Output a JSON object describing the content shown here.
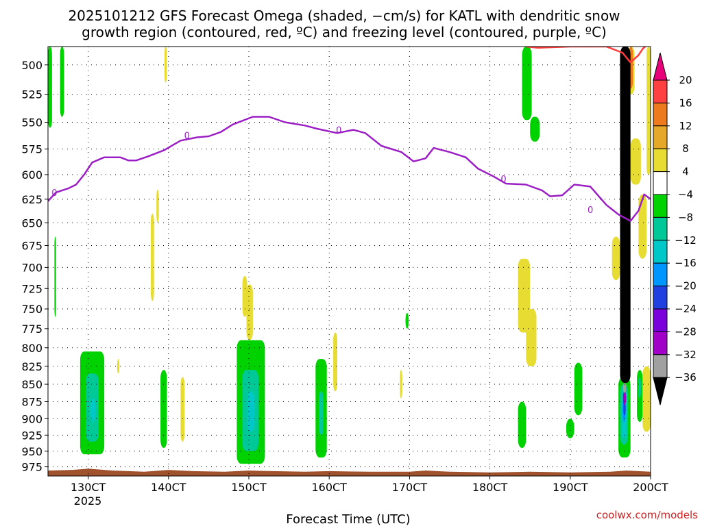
{
  "chart_data": {
    "type": "heatmap",
    "title_lines": [
      "2025101212 GFS Forecast Omega (shaded, −cm/s) for KATL with dendritic snow",
      "growth region (contoured, red, ºC) and freezing level (contoured, purple, ºC)"
    ],
    "xlabel": "Forecast Time (UTC)",
    "xlabel_year": "2025",
    "credit": "coolwx.com/models",
    "x_ticks": [
      {
        "day": 13,
        "label": "130CT"
      },
      {
        "day": 14,
        "label": "140CT"
      },
      {
        "day": 15,
        "label": "150CT"
      },
      {
        "day": 16,
        "label": "160CT"
      },
      {
        "day": 17,
        "label": "170CT"
      },
      {
        "day": 18,
        "label": "180CT"
      },
      {
        "day": 19,
        "label": "190CT"
      },
      {
        "day": 20,
        "label": "200CT"
      }
    ],
    "xlim_days": [
      12.5,
      20.0
    ],
    "y_ticks": [
      500,
      525,
      550,
      575,
      600,
      625,
      650,
      675,
      700,
      725,
      750,
      775,
      800,
      825,
      850,
      875,
      900,
      925,
      950,
      975
    ],
    "y_scale": "log pressure (hPa), inverted",
    "ylim_hpa": [
      485,
      990
    ],
    "grid": true,
    "colorbar": {
      "labels": [
        "20",
        "16",
        "12",
        "8",
        "4",
        "−4",
        "−8",
        "−12",
        "−16",
        "−20",
        "−24",
        "−28",
        "−32",
        "−36"
      ],
      "bins": [
        {
          "range": [
            20,
            null
          ],
          "color": "#e8007a"
        },
        {
          "range": [
            16,
            20
          ],
          "color": "#ff4040"
        },
        {
          "range": [
            12,
            16
          ],
          "color": "#ee7a1e"
        },
        {
          "range": [
            8,
            12
          ],
          "color": "#e6a828"
        },
        {
          "range": [
            4,
            8
          ],
          "color": "#e6dc32"
        },
        {
          "range": [
            -4,
            4
          ],
          "color": "#ffffff"
        },
        {
          "range": [
            -8,
            -4
          ],
          "color": "#00d200"
        },
        {
          "range": [
            -12,
            -8
          ],
          "color": "#00c896"
        },
        {
          "range": [
            -16,
            -12
          ],
          "color": "#00c8c8"
        },
        {
          "range": [
            -20,
            -16
          ],
          "color": "#0096ff"
        },
        {
          "range": [
            -24,
            -20
          ],
          "color": "#2040e0"
        },
        {
          "range": [
            -28,
            -24
          ],
          "color": "#7a00dc"
        },
        {
          "range": [
            -32,
            -28
          ],
          "color": "#a000c8"
        },
        {
          "range": [
            -36,
            -32
          ],
          "color": "#a0a0a0"
        },
        {
          "range": [
            null,
            -36
          ],
          "color": "#000000"
        }
      ]
    },
    "freezing_level": {
      "label": "0",
      "color": "#9b1fc4",
      "points": [
        [
          12.5,
          627
        ],
        [
          12.6,
          618
        ],
        [
          12.75,
          614
        ],
        [
          12.85,
          610
        ],
        [
          12.95,
          600
        ],
        [
          13.05,
          588
        ],
        [
          13.2,
          583
        ],
        [
          13.4,
          583
        ],
        [
          13.5,
          586
        ],
        [
          13.6,
          586
        ],
        [
          13.75,
          582
        ],
        [
          13.95,
          576
        ],
        [
          14.15,
          567
        ],
        [
          14.35,
          564
        ],
        [
          14.5,
          563
        ],
        [
          14.65,
          559
        ],
        [
          14.8,
          552
        ],
        [
          15.05,
          545
        ],
        [
          15.25,
          545
        ],
        [
          15.45,
          550
        ],
        [
          15.7,
          553
        ],
        [
          15.85,
          556
        ],
        [
          16.1,
          560
        ],
        [
          16.3,
          557
        ],
        [
          16.45,
          560
        ],
        [
          16.65,
          572
        ],
        [
          16.9,
          578
        ],
        [
          17.05,
          587
        ],
        [
          17.2,
          584
        ],
        [
          17.3,
          574
        ],
        [
          17.5,
          578
        ],
        [
          17.7,
          583
        ],
        [
          17.85,
          594
        ],
        [
          18.05,
          602
        ],
        [
          18.2,
          609
        ],
        [
          18.45,
          610
        ],
        [
          18.65,
          616
        ],
        [
          18.75,
          622
        ],
        [
          18.9,
          621
        ],
        [
          19.05,
          610
        ],
        [
          19.25,
          612
        ],
        [
          19.45,
          631
        ],
        [
          19.6,
          641
        ],
        [
          19.75,
          648
        ],
        [
          19.85,
          637
        ],
        [
          19.92,
          620
        ],
        [
          20.0,
          625
        ]
      ]
    },
    "dendritic_snow_growth_region": {
      "color": "#ff3b3b",
      "points": [
        [
          18.45,
          485
        ],
        [
          18.6,
          486
        ],
        [
          19.0,
          485
        ],
        [
          19.45,
          485
        ],
        [
          19.65,
          490
        ],
        [
          19.75,
          498
        ],
        [
          19.85,
          492
        ],
        [
          19.9,
          487
        ],
        [
          19.95,
          484
        ],
        [
          20.0,
          483
        ]
      ]
    },
    "omega_regions": [
      {
        "color": "#00d200",
        "x": [
          12.5,
          12.55
        ],
        "p": [
          485,
          555
        ]
      },
      {
        "color": "#00d200",
        "x": [
          12.65,
          12.7
        ],
        "p": [
          485,
          545
        ]
      },
      {
        "color": "#e6dc32",
        "x": [
          13.95,
          13.98
        ],
        "p": [
          485,
          515
        ]
      },
      {
        "color": "#00d200",
        "x": [
          18.4,
          18.52
        ],
        "p": [
          485,
          548
        ]
      },
      {
        "color": "#00d200",
        "x": [
          18.5,
          18.62
        ],
        "p": [
          545,
          568
        ]
      },
      {
        "color": "#e6dc32",
        "x": [
          19.72,
          19.8
        ],
        "p": [
          485,
          525
        ]
      },
      {
        "color": "#ee7a1e",
        "x": [
          19.73,
          19.78
        ],
        "p": [
          485,
          520
        ]
      },
      {
        "color": "#e6dc32",
        "x": [
          19.75,
          19.88
        ],
        "p": [
          565,
          610
        ]
      },
      {
        "color": "#e6dc32",
        "x": [
          19.85,
          19.95
        ],
        "p": [
          620,
          690
        ]
      },
      {
        "color": "#e6dc32",
        "x": [
          19.95,
          20.0
        ],
        "p": [
          485,
          600
        ]
      },
      {
        "color": "#00d200",
        "x": [
          12.58,
          12.6
        ],
        "p": [
          665,
          760
        ]
      },
      {
        "color": "#e6dc32",
        "x": [
          13.78,
          13.82
        ],
        "p": [
          640,
          740
        ]
      },
      {
        "color": "#e6dc32",
        "x": [
          13.85,
          13.88
        ],
        "p": [
          615,
          650
        ]
      },
      {
        "color": "#e6dc32",
        "x": [
          14.92,
          14.98
        ],
        "p": [
          710,
          760
        ]
      },
      {
        "color": "#e6dc32",
        "x": [
          14.97,
          15.05
        ],
        "p": [
          720,
          790
        ]
      },
      {
        "color": "#00d200",
        "x": [
          16.95,
          16.99
        ],
        "p": [
          755,
          775
        ]
      },
      {
        "color": "#e6dc32",
        "x": [
          18.35,
          18.5
        ],
        "p": [
          690,
          780
        ]
      },
      {
        "color": "#e6dc32",
        "x": [
          18.45,
          18.58
        ],
        "p": [
          750,
          825
        ]
      },
      {
        "color": "#e6dc32",
        "x": [
          19.52,
          19.62
        ],
        "p": [
          665,
          715
        ]
      },
      {
        "color": "#e6dc32",
        "x": [
          13.36,
          13.39
        ],
        "p": [
          815,
          835
        ]
      },
      {
        "color": "#e6dc32",
        "x": [
          14.15,
          14.2
        ],
        "p": [
          840,
          935
        ]
      },
      {
        "color": "#e6dc32",
        "x": [
          16.05,
          16.1
        ],
        "p": [
          780,
          860
        ]
      },
      {
        "color": "#e6dc32",
        "x": [
          16.88,
          16.91
        ],
        "p": [
          830,
          870
        ]
      },
      {
        "color": "#e6dc32",
        "x": [
          19.9,
          20.0
        ],
        "p": [
          825,
          920
        ]
      },
      {
        "color": "#00d200",
        "x": [
          12.9,
          13.2
        ],
        "p": [
          805,
          955
        ]
      },
      {
        "color": "#00c896",
        "x": [
          12.97,
          13.13
        ],
        "p": [
          835,
          935
        ]
      },
      {
        "color": "#00c8c8",
        "x": [
          13.03,
          13.09
        ],
        "p": [
          870,
          905
        ]
      },
      {
        "color": "#00d200",
        "x": [
          13.9,
          13.98
        ],
        "p": [
          830,
          945
        ]
      },
      {
        "color": "#00d200",
        "x": [
          14.85,
          15.2
        ],
        "p": [
          790,
          970
        ]
      },
      {
        "color": "#00c896",
        "x": [
          14.92,
          15.12
        ],
        "p": [
          830,
          950
        ]
      },
      {
        "color": "#00c8c8",
        "x": [
          14.98,
          15.07
        ],
        "p": [
          860,
          920
        ]
      },
      {
        "color": "#00d200",
        "x": [
          15.83,
          15.97
        ],
        "p": [
          815,
          960
        ]
      },
      {
        "color": "#00c896",
        "x": [
          15.87,
          15.93
        ],
        "p": [
          860,
          925
        ]
      },
      {
        "color": "#00d200",
        "x": [
          18.35,
          18.45
        ],
        "p": [
          875,
          945
        ]
      },
      {
        "color": "#00d200",
        "x": [
          19.05,
          19.15
        ],
        "p": [
          820,
          895
        ]
      },
      {
        "color": "#00d200",
        "x": [
          18.95,
          19.05
        ],
        "p": [
          900,
          930
        ]
      },
      {
        "color": "#00d200",
        "x": [
          19.6,
          19.75
        ],
        "p": [
          840,
          960
        ]
      },
      {
        "color": "#00c896",
        "x": [
          19.62,
          19.72
        ],
        "p": [
          850,
          940
        ]
      },
      {
        "color": "#00c8c8",
        "x": [
          19.64,
          19.7
        ],
        "p": [
          860,
          930
        ]
      },
      {
        "color": "#0096ff",
        "x": [
          19.65,
          19.69
        ],
        "p": [
          870,
          905
        ]
      },
      {
        "color": "#2040e0",
        "x": [
          19.66,
          19.69
        ],
        "p": [
          875,
          895
        ]
      },
      {
        "color": "#a000c8",
        "x": [
          19.655,
          19.695
        ],
        "p": [
          860,
          880
        ]
      },
      {
        "color": "#a0a0a0",
        "x": [
          19.655,
          19.695
        ],
        "p": [
          848,
          862
        ]
      },
      {
        "color": "#00d200",
        "x": [
          19.83,
          19.9
        ],
        "p": [
          830,
          905
        ]
      },
      {
        "color": "#00c896",
        "x": [
          19.85,
          19.88
        ],
        "p": [
          840,
          870
        ]
      },
      {
        "color": "#000000",
        "x": [
          19.62,
          19.75
        ],
        "p": [
          485,
          848
        ]
      }
    ],
    "terrain": {
      "color": "#a0522d",
      "points": [
        [
          12.5,
          981
        ],
        [
          12.8,
          980
        ],
        [
          13.0,
          978
        ],
        [
          13.3,
          981
        ],
        [
          13.7,
          983
        ],
        [
          14.0,
          980
        ],
        [
          14.3,
          982
        ],
        [
          14.7,
          983
        ],
        [
          15.0,
          981
        ],
        [
          15.3,
          982
        ],
        [
          15.7,
          983
        ],
        [
          16.0,
          982
        ],
        [
          16.5,
          983
        ],
        [
          17.0,
          983
        ],
        [
          17.2,
          981
        ],
        [
          17.5,
          983
        ],
        [
          18.0,
          984
        ],
        [
          18.5,
          983
        ],
        [
          19.0,
          984
        ],
        [
          19.5,
          983
        ],
        [
          19.7,
          981
        ],
        [
          20.0,
          983
        ]
      ]
    }
  }
}
